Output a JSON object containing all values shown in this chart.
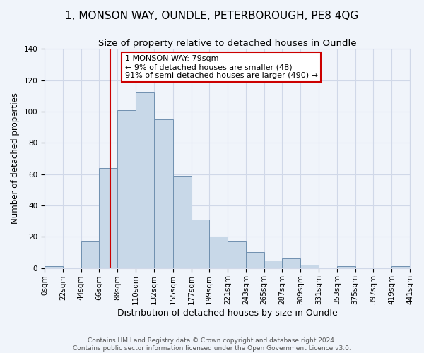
{
  "title": "1, MONSON WAY, OUNDLE, PETERBOROUGH, PE8 4QG",
  "subtitle": "Size of property relative to detached houses in Oundle",
  "xlabel": "Distribution of detached houses by size in Oundle",
  "ylabel": "Number of detached properties",
  "bin_edges": [
    0,
    22,
    44,
    66,
    88,
    110,
    132,
    155,
    177,
    199,
    221,
    243,
    265,
    287,
    309,
    331,
    353,
    375,
    397,
    419,
    441
  ],
  "bin_labels": [
    "0sqm",
    "22sqm",
    "44sqm",
    "66sqm",
    "88sqm",
    "110sqm",
    "132sqm",
    "155sqm",
    "177sqm",
    "199sqm",
    "221sqm",
    "243sqm",
    "265sqm",
    "287sqm",
    "309sqm",
    "331sqm",
    "353sqm",
    "375sqm",
    "397sqm",
    "419sqm",
    "441sqm"
  ],
  "counts": [
    1,
    0,
    17,
    64,
    101,
    112,
    95,
    59,
    31,
    20,
    17,
    10,
    5,
    6,
    2,
    0,
    1,
    0,
    0,
    1
  ],
  "bar_facecolor": "#c8d8e8",
  "bar_edgecolor": "#7090b0",
  "grid_color": "#d0d8e8",
  "background_color": "#f0f4fa",
  "property_line_x": 79,
  "property_line_color": "#cc0000",
  "annotation_text": "1 MONSON WAY: 79sqm\n← 9% of detached houses are smaller (48)\n91% of semi-detached houses are larger (490) →",
  "annotation_box_edgecolor": "#cc0000",
  "annotation_box_facecolor": "#ffffff",
  "footer_text": "Contains HM Land Registry data © Crown copyright and database right 2024.\nContains public sector information licensed under the Open Government Licence v3.0.",
  "ylim": [
    0,
    140
  ],
  "title_fontsize": 11,
  "subtitle_fontsize": 9.5,
  "xlabel_fontsize": 9,
  "ylabel_fontsize": 8.5,
  "tick_fontsize": 7.5,
  "footer_fontsize": 6.5,
  "annot_fontsize": 8
}
